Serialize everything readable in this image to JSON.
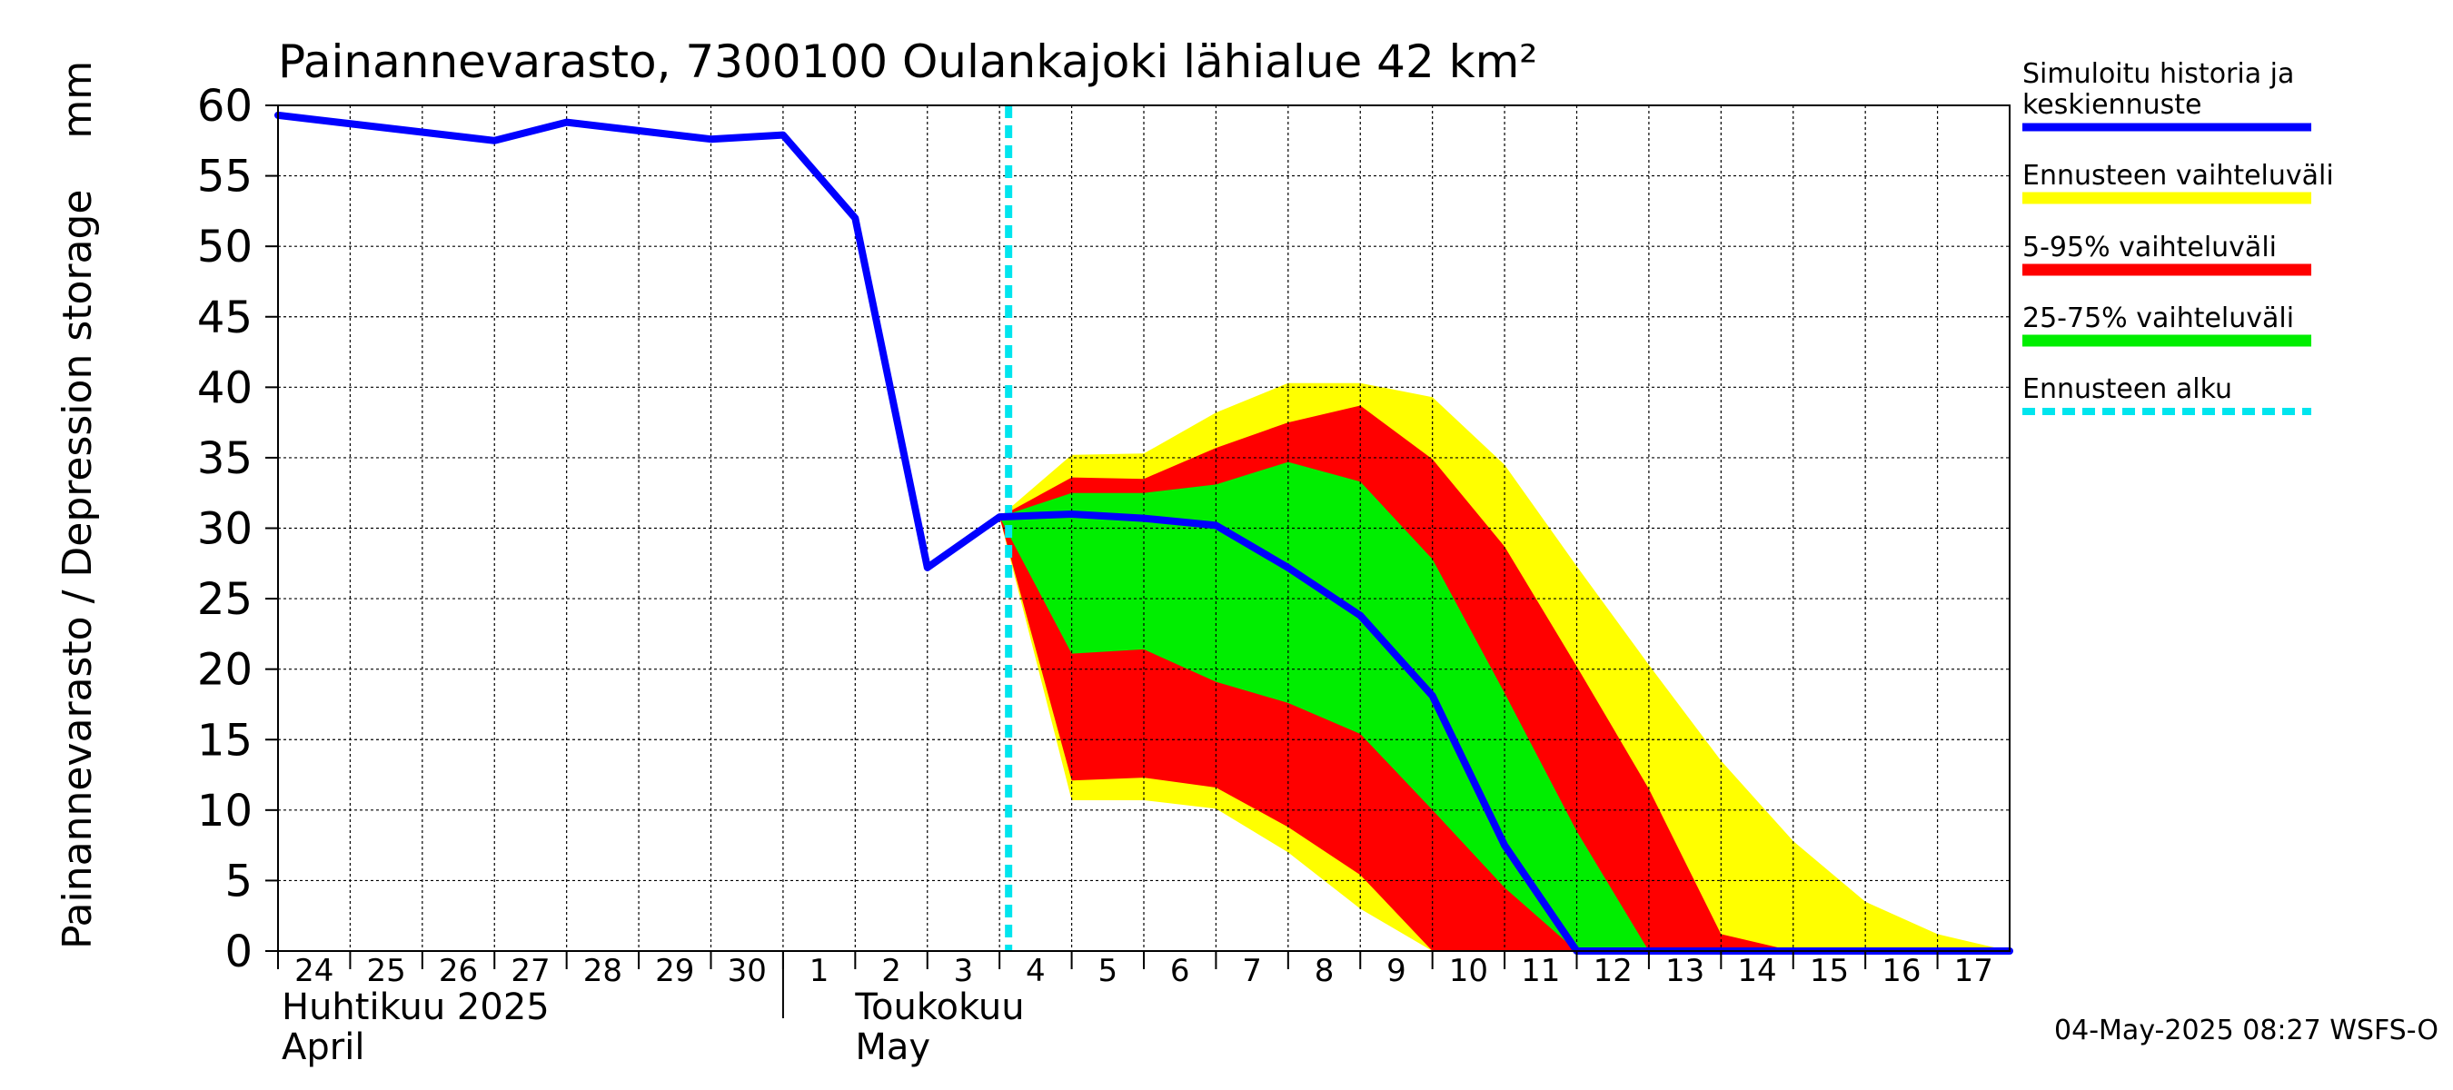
{
  "chart_data": {
    "type": "area",
    "title": "Painannevarasto, 7300100 Oulankajoki lähialue 42 km²",
    "ylabel": "Painannevarasto / Depression storage    mm",
    "ylim": [
      0,
      60
    ],
    "yticks": [
      0,
      5,
      10,
      15,
      20,
      25,
      30,
      35,
      40,
      45,
      50,
      55,
      60
    ],
    "xlim": [
      "2025-04-24",
      "2025-05-18"
    ],
    "x_tick_labels": [
      "24",
      "25",
      "26",
      "27",
      "28",
      "29",
      "30",
      "1",
      "2",
      "3",
      "4",
      "5",
      "6",
      "7",
      "8",
      "9",
      "10",
      "11",
      "12",
      "13",
      "14",
      "15",
      "16",
      "17"
    ],
    "month_labels": [
      {
        "fi": "Huhtikuu  2025",
        "en": "April"
      },
      {
        "fi": "Toukokuu",
        "en": "May"
      }
    ],
    "grid": true,
    "legend_position": "right",
    "forecast_start": "2025-05-04",
    "series": [
      {
        "name": "Simuloitu historia ja keskiennuste",
        "color": "#0000ff",
        "x": [
          "2025-04-24",
          "2025-04-27",
          "2025-04-28",
          "2025-04-30",
          "2025-05-01",
          "2025-05-02",
          "2025-05-03",
          "2025-05-04",
          "2025-05-05",
          "2025-05-06",
          "2025-05-07",
          "2025-05-08",
          "2025-05-09",
          "2025-05-10",
          "2025-05-11",
          "2025-05-12",
          "2025-05-18"
        ],
        "y": [
          59.3,
          57.5,
          58.8,
          57.6,
          57.9,
          52,
          27.2,
          30.8,
          31,
          30.7,
          30.2,
          27.2,
          23.8,
          18.1,
          7.5,
          0,
          0
        ]
      },
      {
        "name": "Ennusteen vaihteluväli",
        "color": "#ffff00",
        "x": [
          "2025-05-04",
          "2025-05-05",
          "2025-05-06",
          "2025-05-07",
          "2025-05-08",
          "2025-05-09",
          "2025-05-10",
          "2025-05-11",
          "2025-05-12",
          "2025-05-13",
          "2025-05-14",
          "2025-05-15",
          "2025-05-16",
          "2025-05-17",
          "2025-05-18"
        ],
        "upper": [
          30.8,
          35.2,
          35.3,
          38.2,
          40.3,
          40.3,
          39.3,
          34.5,
          27.3,
          20.3,
          13.5,
          7.8,
          3.5,
          1.2,
          0
        ],
        "lower": [
          30.8,
          10.7,
          10.7,
          10.1,
          7,
          3,
          0,
          0,
          0,
          0,
          0,
          0,
          0,
          0,
          0
        ]
      },
      {
        "name": "5-95% vaihteluväli",
        "color": "#ff0000",
        "x": [
          "2025-05-04",
          "2025-05-05",
          "2025-05-06",
          "2025-05-07",
          "2025-05-08",
          "2025-05-09",
          "2025-05-10",
          "2025-05-11",
          "2025-05-12",
          "2025-05-13",
          "2025-05-14",
          "2025-05-15",
          "2025-05-16",
          "2025-05-17",
          "2025-05-18"
        ],
        "upper": [
          30.8,
          33.6,
          33.5,
          35.7,
          37.5,
          38.7,
          34.9,
          28.7,
          20.2,
          11.5,
          1.2,
          0,
          0,
          0,
          0
        ],
        "lower": [
          30.8,
          12.1,
          12.3,
          11.6,
          8.8,
          5.4,
          0,
          0,
          0,
          0,
          0,
          0,
          0,
          0,
          0
        ]
      },
      {
        "name": "25-75% vaihteluväli",
        "color": "#00ee00",
        "x": [
          "2025-05-04",
          "2025-05-05",
          "2025-05-06",
          "2025-05-07",
          "2025-05-08",
          "2025-05-09",
          "2025-05-10",
          "2025-05-11",
          "2025-05-12",
          "2025-05-13",
          "2025-05-14",
          "2025-05-15",
          "2025-05-16",
          "2025-05-17",
          "2025-05-18"
        ],
        "upper": [
          30.8,
          32.5,
          32.5,
          33.1,
          34.7,
          33.3,
          27.8,
          18.3,
          8.5,
          0,
          0,
          0,
          0,
          0,
          0
        ],
        "lower": [
          30.8,
          21.1,
          21.4,
          19.1,
          17.6,
          15.4,
          10,
          4.5,
          0,
          0,
          0,
          0,
          0,
          0,
          0
        ]
      },
      {
        "name": "Ennusteen alku",
        "color": "#00e5ee",
        "style": "dashed vertical line"
      }
    ],
    "footer": "04-May-2025 08:27 WSFS-O"
  }
}
